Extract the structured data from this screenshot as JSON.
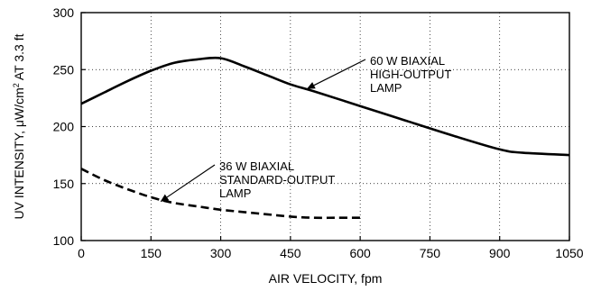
{
  "chart_data": {
    "type": "line",
    "xlabel": "AIR VELOCITY, fpm",
    "ylabel": {
      "prefix": "UV INTENSITY, ",
      "mu": "μ",
      "unit_a": "W/cm",
      "sup": "2",
      "suffix": " AT 3.3 ft"
    },
    "xlim": [
      0,
      1050
    ],
    "ylim": [
      100,
      300
    ],
    "xticks": [
      0,
      150,
      300,
      450,
      600,
      750,
      900,
      1050
    ],
    "yticks": [
      100,
      150,
      200,
      250,
      300
    ],
    "grid": "dotted",
    "series": [
      {
        "style": "solid",
        "x": [
          0,
          50,
          100,
          150,
          200,
          250,
          300,
          350,
          400,
          450,
          500,
          600,
          700,
          800,
          900,
          950,
          1050
        ],
        "y": [
          220,
          230,
          240,
          249,
          256,
          259,
          260,
          253,
          245,
          237,
          231,
          218,
          205,
          192,
          180,
          177,
          175
        ]
      },
      {
        "style": "dashed",
        "x": [
          0,
          50,
          100,
          150,
          200,
          250,
          300,
          350,
          400,
          450,
          500,
          550,
          600
        ],
        "y": [
          163,
          153,
          145,
          138,
          133,
          130,
          127,
          125,
          123,
          121,
          120,
          120,
          120
        ]
      }
    ],
    "annotations": [
      {
        "lines": [
          "60 W BIAXIAL",
          "HIGH-OUTPUT",
          "LAMP"
        ],
        "arrow_to": [
          485,
          233
        ]
      },
      {
        "lines": [
          "36 W BIAXIAL",
          "STANDARD-OUTPUT",
          "LAMP"
        ],
        "arrow_to": [
          170,
          134
        ]
      }
    ]
  }
}
